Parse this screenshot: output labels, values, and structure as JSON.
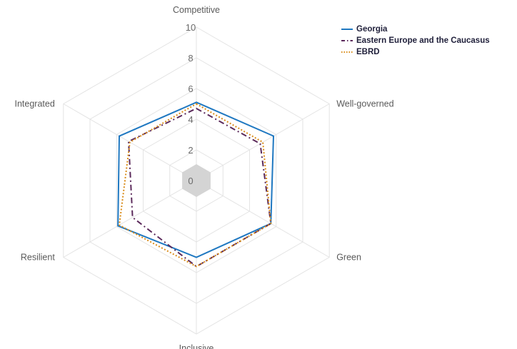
{
  "chart_data": {
    "type": "radar",
    "axes": [
      "Competitive",
      "Well-governed",
      "Green",
      "Inclusive",
      "Resilient",
      "Integrated"
    ],
    "rlim": [
      0,
      10
    ],
    "ticks": [
      "0",
      "2",
      "4",
      "6",
      "8",
      "10"
    ],
    "series": [
      {
        "name": "Georgia",
        "values": [
          5.1,
          5.8,
          5.6,
          5.0,
          5.9,
          5.8
        ],
        "color": "#1f78c1",
        "style": "solid"
      },
      {
        "name": "Eastern Europe and the Caucasus",
        "values": [
          4.7,
          4.8,
          5.6,
          5.6,
          4.8,
          5.1
        ],
        "color": "#5b2a5b",
        "style": "dashdot"
      },
      {
        "name": "EBRD",
        "values": [
          5.0,
          5.0,
          5.6,
          5.6,
          5.8,
          5.0
        ],
        "color": "#d98c1a",
        "style": "dotted"
      }
    ],
    "legend_position": "top-right"
  }
}
